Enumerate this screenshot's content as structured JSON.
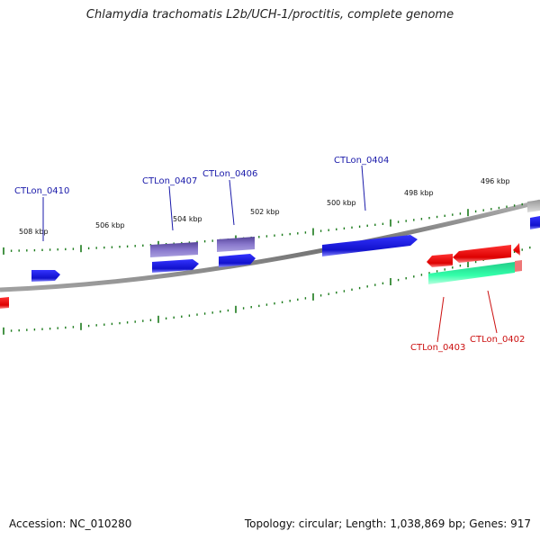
{
  "title": "Chlamydia trachomatis L2b/UCH-1/proctitis, complete genome",
  "footer": {
    "accession": "Accession: NC_010280",
    "summary": "Topology: circular; Length: 1,038,869 bp; Genes: 917"
  },
  "colors": {
    "forward_gene": "#1a1aee",
    "forward_gene_alt": "#7766cc",
    "reverse_gene": "#ee1111",
    "rna": "#22ee99",
    "pseudo": "#bbbbbb",
    "tick": "#1a7a1a",
    "backbone": "#808080",
    "forward_label": "#1a1aaa",
    "reverse_label": "#cc1111"
  },
  "scale_labels": [
    "508 kbp",
    "506 kbp",
    "504 kbp",
    "502 kbp",
    "500 kbp",
    "498 kbp",
    "496 kbp"
  ],
  "gene_labels": {
    "forward": [
      "CTLon_0410",
      "CTLon_0407",
      "CTLon_0406",
      "CTLon_0404"
    ],
    "reverse": [
      "CTLon_0403",
      "CTLon_0402"
    ]
  }
}
